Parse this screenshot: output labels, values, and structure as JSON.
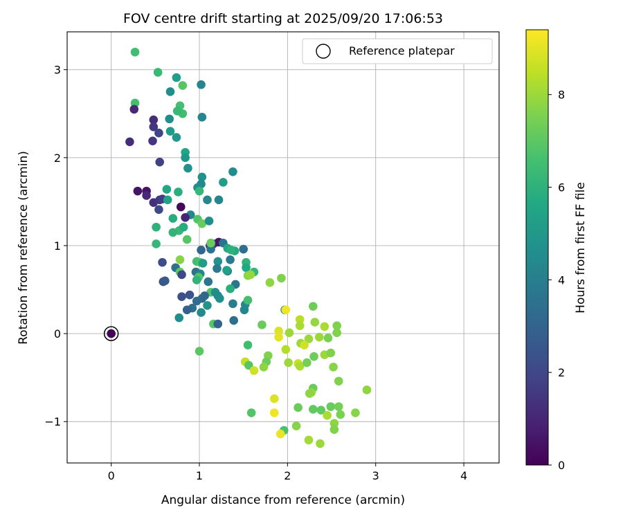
{
  "chart_data": {
    "type": "scatter",
    "title": "FOV centre drift starting at 2025/09/20 17:06:53",
    "xlabel": "Angular distance from reference (arcmin)",
    "ylabel": "Rotation from reference (arcmin)",
    "xlim": [
      -0.5,
      4.4
    ],
    "ylim": [
      -1.47,
      3.43
    ],
    "xticks": [
      0,
      1,
      2,
      3,
      4
    ],
    "xtick_labels": [
      "0",
      "1",
      "2",
      "3",
      "4"
    ],
    "yticks": [
      -1,
      0,
      1,
      2,
      3
    ],
    "ytick_labels": [
      "−1",
      "0",
      "1",
      "2",
      "3"
    ],
    "grid": true,
    "legend": {
      "location": "top-right",
      "entries": [
        "Reference platepar"
      ]
    },
    "colorbar": {
      "label": "Hours from first FF file",
      "colormap": "viridis",
      "range": [
        0,
        9.4
      ],
      "ticks": [
        0,
        2,
        4,
        6,
        8
      ],
      "tick_labels": [
        "0",
        "2",
        "4",
        "6",
        "8"
      ]
    },
    "reference_point": {
      "x": 0,
      "y": 0
    },
    "points": [
      [
        0,
        0,
        0.1
      ],
      [
        0.27,
        3.2,
        6.5
      ],
      [
        0.53,
        2.97,
        6.3
      ],
      [
        0.74,
        2.91,
        5.2
      ],
      [
        0.81,
        2.82,
        6.9
      ],
      [
        1.02,
        2.83,
        4.2
      ],
      [
        0.27,
        2.62,
        6.6
      ],
      [
        0.67,
        2.75,
        4.6
      ],
      [
        0.26,
        2.55,
        1.1
      ],
      [
        0.78,
        2.59,
        6.6
      ],
      [
        0.81,
        2.5,
        6.5
      ],
      [
        0.75,
        2.53,
        6.3
      ],
      [
        1.03,
        2.46,
        4.3
      ],
      [
        0.48,
        2.43,
        1.2
      ],
      [
        0.66,
        2.44,
        4.6
      ],
      [
        0.48,
        2.35,
        1.5
      ],
      [
        0.54,
        2.28,
        2.0
      ],
      [
        0.67,
        2.3,
        5.1
      ],
      [
        0.47,
        2.19,
        1.5
      ],
      [
        0.74,
        2.23,
        5.0
      ],
      [
        0.21,
        2.18,
        1.2
      ],
      [
        0.84,
        2.06,
        5.6
      ],
      [
        0.84,
        2.0,
        4.9
      ],
      [
        0.55,
        1.95,
        1.8
      ],
      [
        0.87,
        1.88,
        4.7
      ],
      [
        1.38,
        1.84,
        4.5
      ],
      [
        1.03,
        1.78,
        4.7
      ],
      [
        1.02,
        1.7,
        4.4
      ],
      [
        1.27,
        1.72,
        5.2
      ],
      [
        0.98,
        1.66,
        4.5
      ],
      [
        1.0,
        1.62,
        6.2
      ],
      [
        0.3,
        1.62,
        0.5
      ],
      [
        0.4,
        1.62,
        0.5
      ],
      [
        0.63,
        1.64,
        5.6
      ],
      [
        0.76,
        1.61,
        5.9
      ],
      [
        0.4,
        1.57,
        1.1
      ],
      [
        0.48,
        1.49,
        1.3
      ],
      [
        0.55,
        1.52,
        1.5
      ],
      [
        0.58,
        1.53,
        1.7
      ],
      [
        0.64,
        1.52,
        5.4
      ],
      [
        1.09,
        1.52,
        4.4
      ],
      [
        1.22,
        1.52,
        4.3
      ],
      [
        0.79,
        1.44,
        0.2
      ],
      [
        0.54,
        1.41,
        2.1
      ],
      [
        0.9,
        1.35,
        4.3
      ],
      [
        0.84,
        1.32,
        1.0
      ],
      [
        0.7,
        1.31,
        5.8
      ],
      [
        0.98,
        1.3,
        6.8
      ],
      [
        1.03,
        1.25,
        7.2
      ],
      [
        1.11,
        1.28,
        4.6
      ],
      [
        0.51,
        1.21,
        6.0
      ],
      [
        0.77,
        1.17,
        6.3
      ],
      [
        0.7,
        1.15,
        6.1
      ],
      [
        0.82,
        1.21,
        5.8
      ],
      [
        0.86,
        1.07,
        6.9
      ],
      [
        0.51,
        1.02,
        6.2
      ],
      [
        1.12,
        1.0,
        1.3
      ],
      [
        1.16,
        1.02,
        1.2
      ],
      [
        1.22,
        1.04,
        0.6
      ],
      [
        1.27,
        1.03,
        3.6
      ],
      [
        1.13,
        1.01,
        2.6
      ],
      [
        1.13,
        0.96,
        3.6
      ],
      [
        1.02,
        0.95,
        3.1
      ],
      [
        1.32,
        0.97,
        5.6
      ],
      [
        1.4,
        0.94,
        5.7
      ],
      [
        1.36,
        0.95,
        6.0
      ],
      [
        1.5,
        0.96,
        3.4
      ],
      [
        1.13,
        1.03,
        7.2
      ],
      [
        0.78,
        0.84,
        7.7
      ],
      [
        0.58,
        0.81,
        2.2
      ],
      [
        0.97,
        0.82,
        6.5
      ],
      [
        1.01,
        0.81,
        6.7
      ],
      [
        1.04,
        0.8,
        5.2
      ],
      [
        1.21,
        0.82,
        4.7
      ],
      [
        1.35,
        0.84,
        3.8
      ],
      [
        1.53,
        0.81,
        6.1
      ],
      [
        1.53,
        0.75,
        5.6
      ],
      [
        1.2,
        0.74,
        3.8
      ],
      [
        1.32,
        0.71,
        4.1
      ],
      [
        1.31,
        0.72,
        5.3
      ],
      [
        0.96,
        0.7,
        3.5
      ],
      [
        0.73,
        0.75,
        3.5
      ],
      [
        1.01,
        0.68,
        4.3
      ],
      [
        0.78,
        0.7,
        7.0
      ],
      [
        1.62,
        0.7,
        6.2
      ],
      [
        1.55,
        0.66,
        7.7
      ],
      [
        1.58,
        0.67,
        7.9
      ],
      [
        0.99,
        0.64,
        6.9
      ],
      [
        0.97,
        0.61,
        6.1
      ],
      [
        0.59,
        0.59,
        2.4
      ],
      [
        0.61,
        0.6,
        2.7
      ],
      [
        0.8,
        0.67,
        2.0
      ],
      [
        1.1,
        0.59,
        3.7
      ],
      [
        1.41,
        0.56,
        3.7
      ],
      [
        1.8,
        0.58,
        7.8
      ],
      [
        1.93,
        0.63,
        7.6
      ],
      [
        1.35,
        0.51,
        5.9
      ],
      [
        1.13,
        0.47,
        6.8
      ],
      [
        1.18,
        0.47,
        4.6
      ],
      [
        1.21,
        0.43,
        4.4
      ],
      [
        0.8,
        0.42,
        2.3
      ],
      [
        0.89,
        0.44,
        2.4
      ],
      [
        1.06,
        0.43,
        3.1
      ],
      [
        1.03,
        0.4,
        3.2
      ],
      [
        0.97,
        0.37,
        3.3
      ],
      [
        1.23,
        0.4,
        4.6
      ],
      [
        1.38,
        0.34,
        4.0
      ],
      [
        1.52,
        0.33,
        4.4
      ],
      [
        1.55,
        0.38,
        6.6
      ],
      [
        1.09,
        0.32,
        4.8
      ],
      [
        0.92,
        0.29,
        3.4
      ],
      [
        0.86,
        0.27,
        2.9
      ],
      [
        1.02,
        0.24,
        4.4
      ],
      [
        1.51,
        0.27,
        4.3
      ],
      [
        1.97,
        0.27,
        4.7
      ],
      [
        1.98,
        0.27,
        9.2
      ],
      [
        0.77,
        0.18,
        4.5
      ],
      [
        1.39,
        0.15,
        3.4
      ],
      [
        1.16,
        0.11,
        6.9
      ],
      [
        1.21,
        0.11,
        2.9
      ],
      [
        1.71,
        0.1,
        7.2
      ],
      [
        2.29,
        0.31,
        7.3
      ],
      [
        2.14,
        0.16,
        8.4
      ],
      [
        2.14,
        0.09,
        8.2
      ],
      [
        2.31,
        0.13,
        7.9
      ],
      [
        2.42,
        0.08,
        8.2
      ],
      [
        2.56,
        0.09,
        7.6
      ],
      [
        2.56,
        0.01,
        7.6
      ],
      [
        1.9,
        0.03,
        8.9
      ],
      [
        1.9,
        -0.04,
        9.0
      ],
      [
        2.02,
        0.01,
        8.0
      ],
      [
        2.24,
        -0.06,
        8.0
      ],
      [
        2.36,
        -0.04,
        8.0
      ],
      [
        2.46,
        -0.05,
        7.5
      ],
      [
        1.55,
        -0.13,
        6.5
      ],
      [
        2.15,
        -0.11,
        8.0
      ],
      [
        2.19,
        -0.13,
        8.7
      ],
      [
        2.42,
        -0.24,
        8.0
      ],
      [
        2.49,
        -0.22,
        7.6
      ],
      [
        1.98,
        -0.18,
        8.3
      ],
      [
        1.78,
        -0.25,
        7.6
      ],
      [
        1.76,
        -0.32,
        7.3
      ],
      [
        2.01,
        -0.33,
        8.0
      ],
      [
        2.12,
        -0.34,
        8.6
      ],
      [
        2.14,
        -0.37,
        8.2
      ],
      [
        2.22,
        -0.33,
        7.4
      ],
      [
        2.3,
        -0.26,
        7.3
      ],
      [
        2.52,
        -0.38,
        7.7
      ],
      [
        1.52,
        -0.32,
        8.5
      ],
      [
        1.56,
        -0.36,
        6.9
      ],
      [
        1.73,
        -0.38,
        7.8
      ],
      [
        1.62,
        -0.42,
        8.7
      ],
      [
        2.58,
        -0.54,
        7.6
      ],
      [
        2.29,
        -0.62,
        7.2
      ],
      [
        2.27,
        -0.67,
        8.0
      ],
      [
        2.25,
        -0.68,
        7.8
      ],
      [
        2.9,
        -0.64,
        7.8
      ],
      [
        1.85,
        -0.74,
        8.9
      ],
      [
        2.12,
        -0.84,
        7.2
      ],
      [
        2.29,
        -0.86,
        7.1
      ],
      [
        2.38,
        -0.87,
        7.1
      ],
      [
        2.49,
        -0.83,
        7.2
      ],
      [
        2.58,
        -0.83,
        7.4
      ],
      [
        1.59,
        -0.9,
        6.8
      ],
      [
        1.85,
        -0.9,
        9.2
      ],
      [
        2.45,
        -0.93,
        8.2
      ],
      [
        2.6,
        -0.92,
        7.5
      ],
      [
        2.77,
        -0.9,
        7.7
      ],
      [
        2.53,
        -1.02,
        7.8
      ],
      [
        2.1,
        -1.05,
        7.7
      ],
      [
        2.53,
        -1.09,
        7.6
      ],
      [
        1.96,
        -1.1,
        6.7
      ],
      [
        1.92,
        -1.14,
        9.1
      ],
      [
        2.24,
        -1.21,
        8.1
      ],
      [
        2.37,
        -1.25,
        8.0
      ],
      [
        1.0,
        -0.2,
        7.0
      ]
    ]
  }
}
